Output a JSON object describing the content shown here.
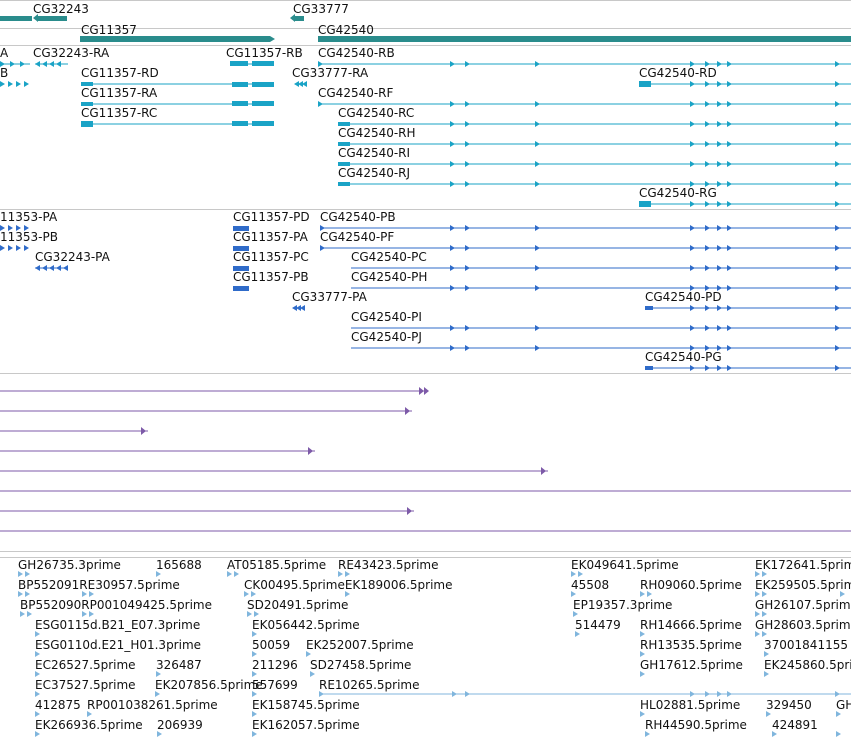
{
  "colors": {
    "gene": "#2a8c8c",
    "transcript": "#1aa3c6",
    "cds": "#2f6bc9",
    "alignment": "#7d5aa8",
    "est": "#80b6dd",
    "separator": "#c8c8c8"
  },
  "tracks": {
    "gene": {
      "labels": [
        "CG32243",
        "CG33777",
        "CG11357",
        "CG42540"
      ]
    },
    "transcripts": {
      "labels": [
        "A",
        "CG32243-RA",
        "CG11357-RB",
        "CG42540-RB",
        "B",
        "CG11357-RD",
        "CG33777-RA",
        "CG42540-RD",
        "CG11357-RA",
        "CG42540-RF",
        "CG11357-RC",
        "CG42540-RC",
        "CG42540-RH",
        "CG42540-RI",
        "CG42540-RJ",
        "CG42540-RG"
      ]
    },
    "cds": {
      "labels": [
        "11353-PA",
        "CG11357-PD",
        "CG42540-PB",
        "11353-PB",
        "CG11357-PA",
        "CG42540-PF",
        "CG32243-PA",
        "CG11357-PC",
        "CG42540-PC",
        "CG11357-PB",
        "CG42540-PH",
        "CG33777-PA",
        "CG42540-PD",
        "CG42540-PI",
        "CG42540-PJ",
        "CG42540-PG"
      ]
    },
    "est": {
      "labels": [
        "GH26735.3prime",
        "165688",
        "AT05185.5prime",
        "RE43423.5prime",
        "EK049641.5prime",
        "EK172641.5prime",
        "BP552091RE30957.5prime",
        "CK00495.5primeEK189006.5prime",
        "45508",
        "RH09060.5prime",
        "EK259505.5prime",
        "BP552090RP001049425.5prime",
        "SD20491.5prime",
        "EP19357.3prime",
        "GH26107.5prime",
        "ESG0115d.B21_E07.3prime",
        "EK056442.5prime",
        "514479",
        "RH14666.5prime",
        "GH28603.5prime",
        "ESG0110d.E21_H01.3prime",
        "50059",
        "EK252007.5prime",
        "RH13535.5prime",
        "37001841155",
        "EC26527.5prime",
        "326487",
        "211296",
        "SD27458.5prime",
        "GH17612.5prime",
        "EK245860.5prime",
        "EC37527.5prime",
        "EK207856.5prime",
        "557699",
        "RE10265.5prime",
        "412875",
        "RP001038261.5prime",
        "EK158745.5prime",
        "HL02881.5prime",
        "329450",
        "GH",
        "EK266936.5prime",
        "206939",
        "EK162057.5prime",
        "RH44590.5prime",
        "424891"
      ]
    }
  }
}
